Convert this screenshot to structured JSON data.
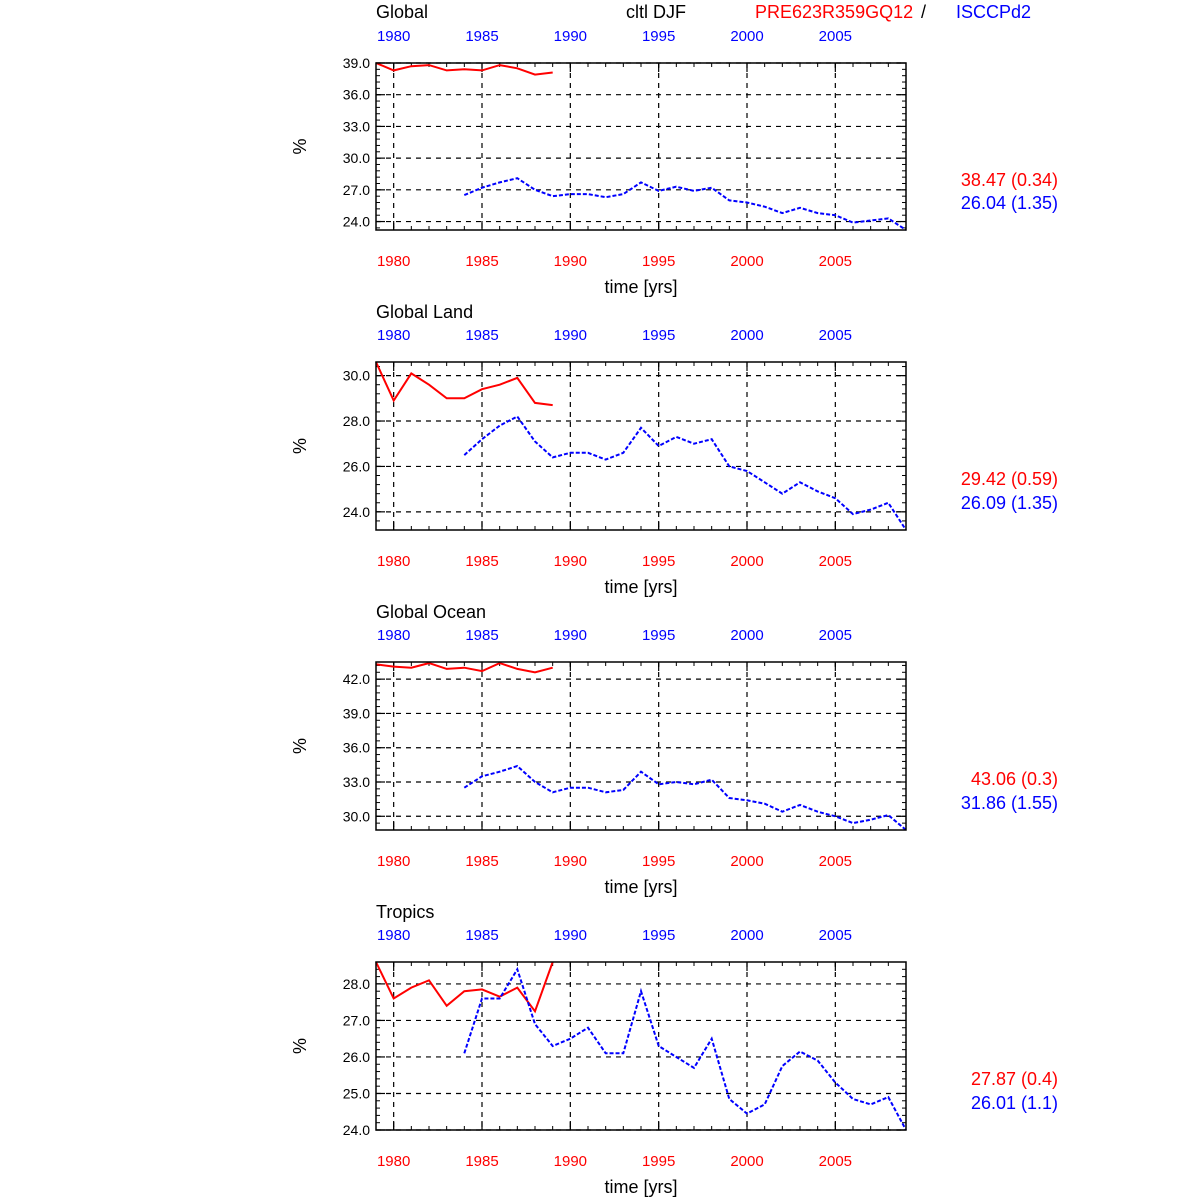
{
  "header": {
    "region_first": "Global",
    "title": "cltl DJF",
    "model_name": "PRE623R359GQ12",
    "separator": "/",
    "obs_name": "ISCCPd2"
  },
  "colors": {
    "model": "#ff0000",
    "obs": "#0000ff",
    "axis": "#000000",
    "grid": "#000000"
  },
  "chart_data": [
    {
      "type": "line",
      "title": "Global",
      "xlabel": "time [yrs]",
      "ylabel": "%",
      "xlim": [
        1979,
        2009
      ],
      "ylim": [
        23.2,
        39.0
      ],
      "yticks": [
        "24.0",
        "27.0",
        "30.0",
        "33.0",
        "36.0",
        "39.0"
      ],
      "xticks": [
        "1980",
        "1985",
        "1990",
        "1995",
        "2000",
        "2005"
      ],
      "grid": true,
      "series": [
        {
          "name": "PRE623R359GQ12",
          "color": "#ff0000",
          "style": "solid",
          "x": [
            1979,
            1980,
            1981,
            1982,
            1983,
            1984,
            1985,
            1986,
            1987,
            1988,
            1989
          ],
          "y": [
            39.0,
            38.3,
            38.7,
            38.8,
            38.3,
            38.4,
            38.3,
            38.8,
            38.5,
            37.9,
            38.1
          ],
          "stat": "38.47 (0.34)"
        },
        {
          "name": "ISCCPd2",
          "color": "#0000ff",
          "style": "dashed",
          "x": [
            1984,
            1985,
            1986,
            1987,
            1988,
            1989,
            1990,
            1991,
            1992,
            1993,
            1994,
            1995,
            1996,
            1997,
            1998,
            1999,
            2000,
            2001,
            2002,
            2003,
            2004,
            2005,
            2006,
            2007,
            2008,
            2009
          ],
          "y": [
            26.5,
            27.2,
            27.7,
            28.1,
            27.0,
            26.4,
            26.6,
            26.6,
            26.3,
            26.6,
            27.7,
            26.9,
            27.3,
            26.9,
            27.2,
            26.0,
            25.8,
            25.4,
            24.8,
            25.3,
            24.8,
            24.6,
            23.9,
            24.1,
            24.3,
            23.2
          ],
          "stat": "26.04 (1.35)"
        }
      ]
    },
    {
      "type": "line",
      "title": "Global Land",
      "xlabel": "time [yrs]",
      "ylabel": "%",
      "xlim": [
        1979,
        2009
      ],
      "ylim": [
        23.2,
        30.6
      ],
      "yticks": [
        "24.0",
        "26.0",
        "28.0",
        "30.0"
      ],
      "xticks": [
        "1980",
        "1985",
        "1990",
        "1995",
        "2000",
        "2005"
      ],
      "grid": true,
      "series": [
        {
          "name": "PRE623R359GQ12",
          "color": "#ff0000",
          "style": "solid",
          "x": [
            1979,
            1980,
            1981,
            1982,
            1983,
            1984,
            1985,
            1986,
            1987,
            1988,
            1989
          ],
          "y": [
            30.6,
            28.9,
            30.1,
            29.6,
            29.0,
            29.0,
            29.4,
            29.6,
            29.9,
            28.8,
            28.7
          ],
          "stat": "29.42 (0.59)"
        },
        {
          "name": "ISCCPd2",
          "color": "#0000ff",
          "style": "dashed",
          "x": [
            1984,
            1985,
            1986,
            1987,
            1988,
            1989,
            1990,
            1991,
            1992,
            1993,
            1994,
            1995,
            1996,
            1997,
            1998,
            1999,
            2000,
            2001,
            2002,
            2003,
            2004,
            2005,
            2006,
            2007,
            2008,
            2009
          ],
          "y": [
            26.5,
            27.2,
            27.8,
            28.2,
            27.1,
            26.4,
            26.6,
            26.6,
            26.3,
            26.6,
            27.7,
            26.9,
            27.3,
            27.0,
            27.2,
            26.0,
            25.8,
            25.3,
            24.8,
            25.3,
            24.9,
            24.6,
            23.9,
            24.1,
            24.4,
            23.2
          ],
          "stat": "26.09 (1.35)"
        }
      ]
    },
    {
      "type": "line",
      "title": "Global Ocean",
      "xlabel": "time [yrs]",
      "ylabel": "%",
      "xlim": [
        1979,
        2009
      ],
      "ylim": [
        28.8,
        43.5
      ],
      "yticks": [
        "30.0",
        "33.0",
        "36.0",
        "39.0",
        "42.0"
      ],
      "xticks": [
        "1980",
        "1985",
        "1990",
        "1995",
        "2000",
        "2005"
      ],
      "grid": true,
      "series": [
        {
          "name": "PRE623R359GQ12",
          "color": "#ff0000",
          "style": "solid",
          "x": [
            1979,
            1980,
            1981,
            1982,
            1983,
            1984,
            1985,
            1986,
            1987,
            1988,
            1989
          ],
          "y": [
            43.3,
            43.1,
            43.0,
            43.4,
            42.9,
            43.0,
            42.7,
            43.4,
            42.9,
            42.6,
            43.0
          ],
          "stat": "43.06 (0.3)"
        },
        {
          "name": "ISCCPd2",
          "color": "#0000ff",
          "style": "dashed",
          "x": [
            1984,
            1985,
            1986,
            1987,
            1988,
            1989,
            1990,
            1991,
            1992,
            1993,
            1994,
            1995,
            1996,
            1997,
            1998,
            1999,
            2000,
            2001,
            2002,
            2003,
            2004,
            2005,
            2006,
            2007,
            2008,
            2009
          ],
          "y": [
            32.5,
            33.5,
            33.9,
            34.4,
            33.0,
            32.1,
            32.5,
            32.5,
            32.1,
            32.3,
            33.9,
            32.8,
            33.0,
            32.8,
            33.2,
            31.6,
            31.4,
            31.1,
            30.4,
            31.0,
            30.4,
            30.0,
            29.4,
            29.7,
            30.1,
            28.8
          ],
          "stat": "31.86 (1.55)"
        }
      ]
    },
    {
      "type": "line",
      "title": "Tropics",
      "xlabel": "time [yrs]",
      "ylabel": "%",
      "xlim": [
        1979,
        2009
      ],
      "ylim": [
        24.0,
        28.6
      ],
      "yticks": [
        "24.0",
        "25.0",
        "26.0",
        "27.0",
        "28.0"
      ],
      "xticks": [
        "1980",
        "1985",
        "1990",
        "1995",
        "2000",
        "2005"
      ],
      "grid": true,
      "series": [
        {
          "name": "PRE623R359GQ12",
          "color": "#ff0000",
          "style": "solid",
          "x": [
            1979,
            1980,
            1981,
            1982,
            1983,
            1984,
            1985,
            1986,
            1987,
            1988,
            1989
          ],
          "y": [
            28.6,
            27.6,
            27.9,
            28.1,
            27.4,
            27.8,
            27.85,
            27.65,
            27.9,
            27.25,
            28.6
          ],
          "stat": "27.87 (0.4)"
        },
        {
          "name": "ISCCPd2",
          "color": "#0000ff",
          "style": "dashed",
          "x": [
            1984,
            1985,
            1986,
            1987,
            1988,
            1989,
            1990,
            1991,
            1992,
            1993,
            1994,
            1995,
            1996,
            1997,
            1998,
            1999,
            2000,
            2001,
            2002,
            2003,
            2004,
            2005,
            2006,
            2007,
            2008,
            2009
          ],
          "y": [
            26.1,
            27.6,
            27.6,
            28.4,
            26.9,
            26.3,
            26.5,
            26.8,
            26.1,
            26.1,
            27.8,
            26.3,
            26.0,
            25.7,
            26.5,
            24.85,
            24.45,
            24.7,
            25.75,
            26.15,
            25.9,
            25.3,
            24.85,
            24.7,
            24.9,
            24.0
          ],
          "stat": "26.01 (1.1)"
        }
      ]
    }
  ]
}
